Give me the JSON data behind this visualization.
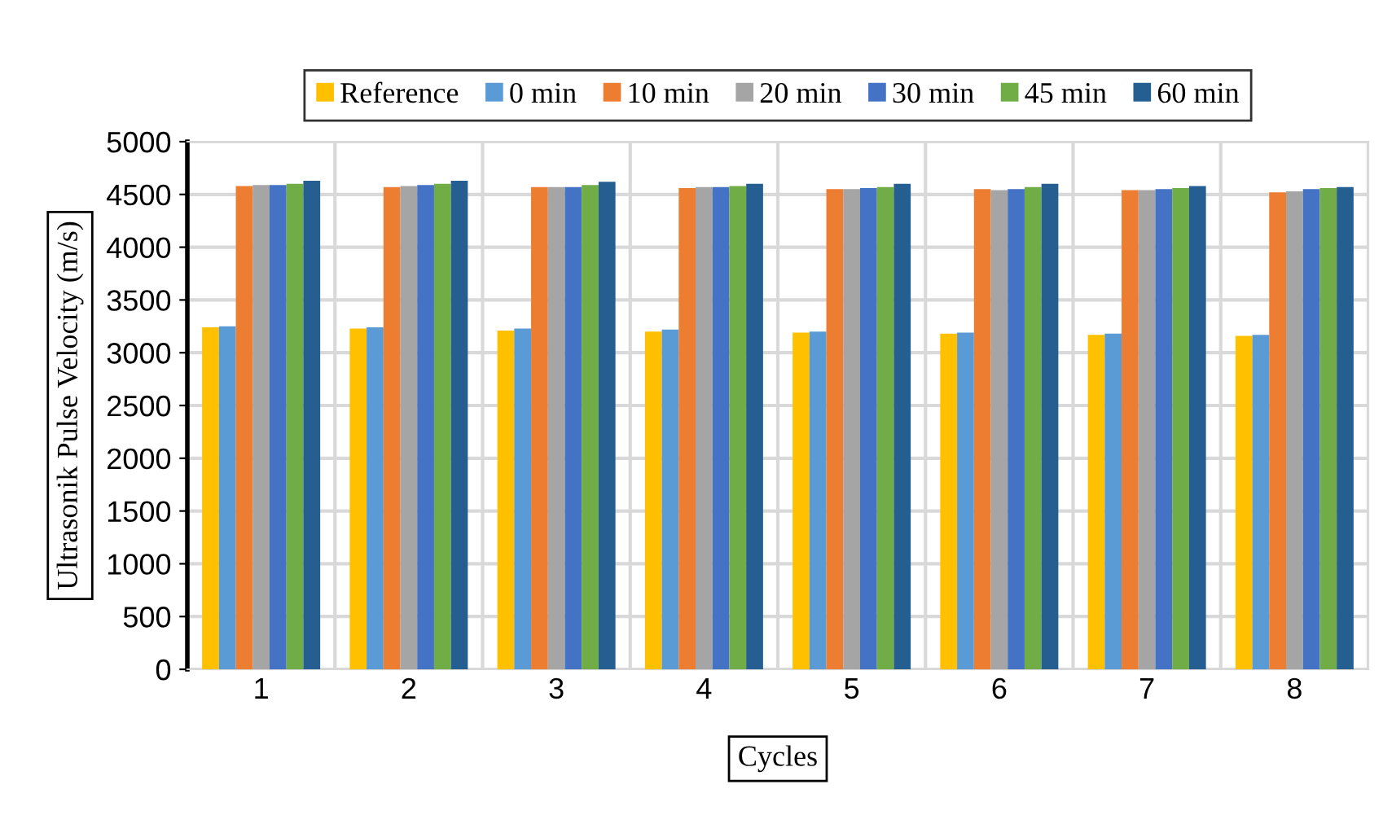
{
  "chart_data": {
    "type": "bar",
    "xlabel": "Cycles",
    "ylabel": "Ultrasonik Pulse Velocity (m/s)",
    "categories": [
      "1",
      "2",
      "3",
      "4",
      "5",
      "6",
      "7",
      "8"
    ],
    "series": [
      {
        "name": "Reference",
        "color": "#ffc000",
        "values": [
          3240,
          3230,
          3210,
          3200,
          3190,
          3180,
          3170,
          3160
        ]
      },
      {
        "name": "0 min",
        "color": "#5b9bd5",
        "values": [
          3250,
          3240,
          3230,
          3220,
          3200,
          3190,
          3180,
          3170
        ]
      },
      {
        "name": "10 min",
        "color": "#ed7d31",
        "values": [
          4580,
          4570,
          4570,
          4560,
          4550,
          4550,
          4540,
          4520
        ]
      },
      {
        "name": "20 min",
        "color": "#a5a5a5",
        "values": [
          4590,
          4580,
          4570,
          4570,
          4550,
          4540,
          4540,
          4530
        ]
      },
      {
        "name": "30 min",
        "color": "#4472c4",
        "values": [
          4590,
          4590,
          4570,
          4570,
          4560,
          4550,
          4550,
          4550
        ]
      },
      {
        "name": "45 min",
        "color": "#70ad47",
        "values": [
          4600,
          4600,
          4590,
          4580,
          4570,
          4570,
          4560,
          4560
        ]
      },
      {
        "name": "60 min",
        "color": "#255e91",
        "values": [
          4630,
          4630,
          4620,
          4600,
          4600,
          4600,
          4580,
          4570
        ]
      }
    ],
    "ylim": [
      0,
      5000
    ],
    "yticks": [
      0,
      500,
      1000,
      1500,
      2000,
      2500,
      3000,
      3500,
      4000,
      4500,
      5000
    ],
    "grid": true,
    "legend": "top"
  }
}
